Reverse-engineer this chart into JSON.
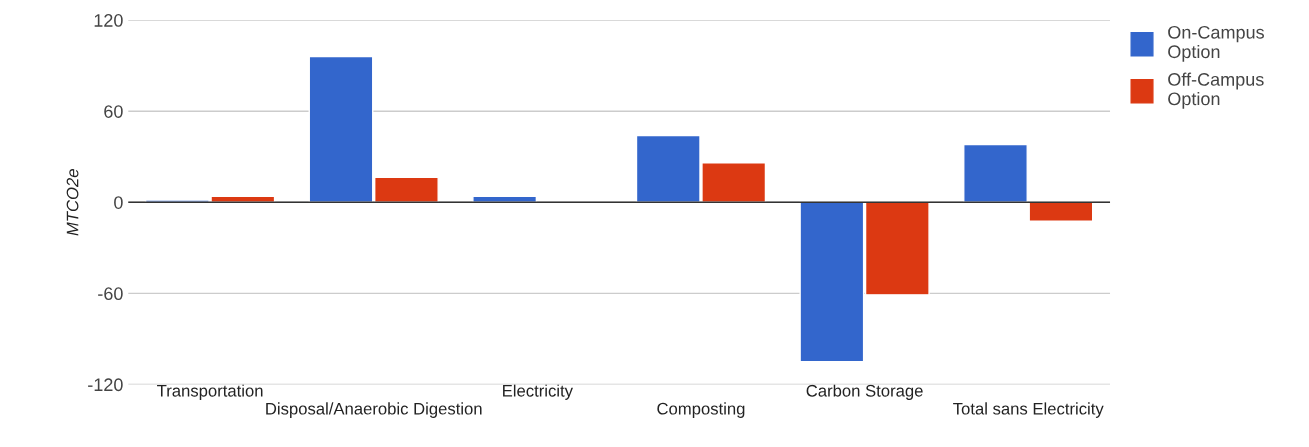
{
  "chart_data": {
    "type": "bar",
    "ylabel": "MTCO2e",
    "categories": [
      "Transportation",
      "Disposal/Anaerobic Digestion",
      "Electricity",
      "Composting",
      "Carbon Storage",
      "Total sans Electricity"
    ],
    "series": [
      {
        "name": "On-Campus Option",
        "color": "#3366cc",
        "values": [
          1.5,
          96,
          4,
          44,
          -105,
          38
        ]
      },
      {
        "name": "Off-Campus Option",
        "color": "#dc3912",
        "values": [
          4,
          16.5,
          null,
          26,
          -61,
          -12.5
        ]
      }
    ],
    "ylim": [
      -120,
      120
    ],
    "yticks": [
      -120,
      -60,
      0,
      60,
      120
    ],
    "grid": "y",
    "legend": "top right"
  }
}
